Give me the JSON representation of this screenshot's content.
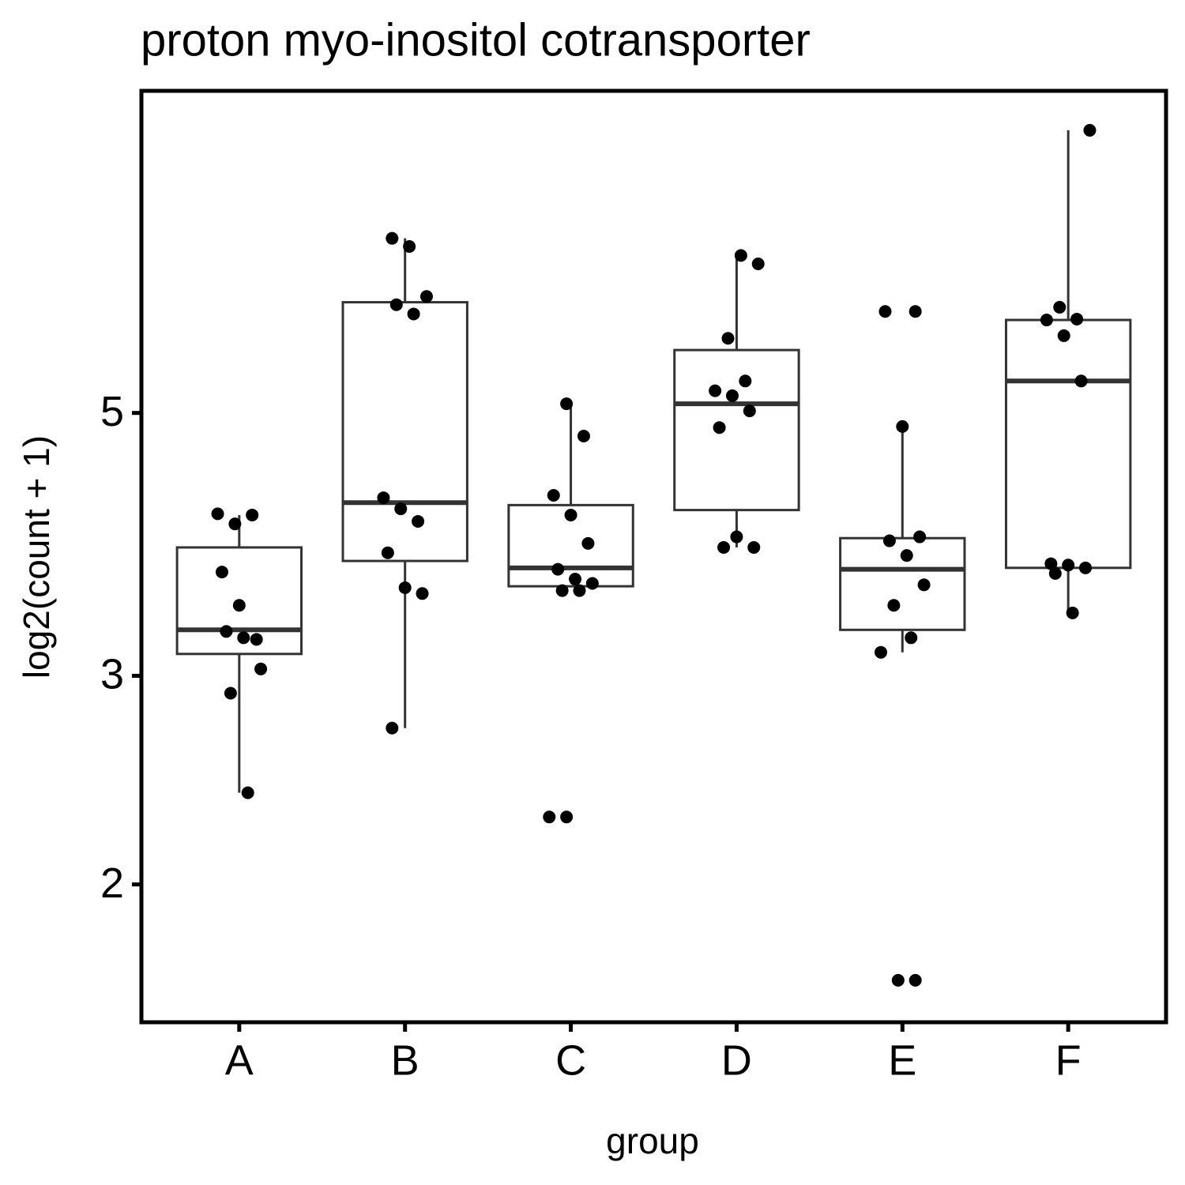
{
  "chart_data": {
    "type": "box",
    "title": "proton myo-inositol cotransporter",
    "x_label": "group",
    "y_label": "log2(count + 1)",
    "categories": [
      "A",
      "B",
      "C",
      "D",
      "E",
      "F"
    ],
    "boxes": [
      {
        "whisker_low": 2.39,
        "q1": 3.13,
        "median": 3.28,
        "q3": 3.85,
        "whisker_high": 4.1
      },
      {
        "whisker_low": 2.71,
        "q1": 3.75,
        "median": 4.2,
        "q3": 6.2,
        "whisker_high": 7.02
      },
      {
        "whisker_low": 3.57,
        "q1": 3.57,
        "median": 3.7,
        "q3": 4.18,
        "whisker_high": 5.09
      },
      {
        "whisker_low": 3.85,
        "q1": 4.14,
        "median": 5.09,
        "q3": 5.65,
        "whisker_high": 6.79
      },
      {
        "whisker_low": 3.14,
        "q1": 3.28,
        "median": 3.69,
        "q3": 3.92,
        "whisker_high": 4.87
      },
      {
        "whisker_low": 3.39,
        "q1": 3.7,
        "median": 5.32,
        "q3": 5.99,
        "whisker_high": 8.66
      }
    ],
    "points": [
      [
        4.11,
        4.03,
        4.1,
        3.67,
        3.44,
        3.22,
        3.27,
        3.23,
        3.04,
        2.9,
        2.39
      ],
      [
        7.02,
        6.91,
        6.27,
        6.17,
        6.06,
        4.24,
        4.15,
        4.05,
        3.81,
        3.56,
        3.52,
        2.71
      ],
      [
        5.09,
        4.78,
        4.26,
        4.1,
        3.88,
        3.69,
        3.62,
        3.59,
        3.54,
        3.54,
        2.28,
        2.28
      ],
      [
        6.79,
        6.68,
        5.78,
        5.32,
        5.22,
        5.17,
        5.02,
        4.86,
        3.93,
        3.85,
        3.85
      ],
      [
        6.09,
        6.09,
        4.87,
        3.93,
        3.9,
        3.79,
        3.58,
        3.44,
        3.23,
        3.14,
        1.66,
        1.66
      ],
      [
        8.66,
        6.14,
        6.0,
        5.99,
        5.81,
        5.32,
        3.73,
        3.72,
        3.7,
        3.66,
        3.39
      ]
    ],
    "box_color": "#333333",
    "point_color": "#000000",
    "log_y": true,
    "ylim": [
      1.53,
      9.35
    ],
    "yticks": [
      2,
      3,
      5
    ]
  }
}
